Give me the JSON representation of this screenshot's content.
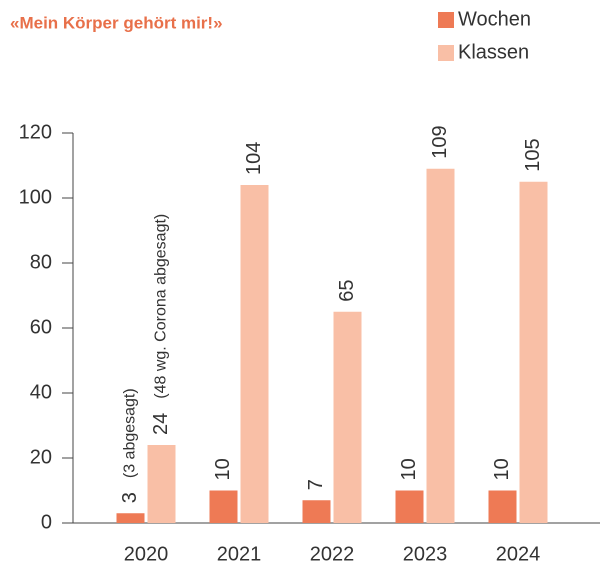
{
  "chart_data": {
    "type": "bar",
    "title": "«Mein Körper gehört mir!»",
    "categories": [
      "2020",
      "2021",
      "2022",
      "2023",
      "2024"
    ],
    "series": [
      {
        "name": "Wochen",
        "color": "#ee7a55",
        "values": [
          3,
          10,
          7,
          10,
          10
        ]
      },
      {
        "name": "Klassen",
        "color": "#f9bfa6",
        "values": [
          24,
          104,
          65,
          109,
          105
        ]
      }
    ],
    "annotations": [
      "(3 abgesagt)",
      "(48 wg. Corona abgesagt)"
    ],
    "ylim": [
      0,
      120
    ],
    "yticks": [
      0,
      20,
      40,
      60,
      80,
      100,
      120
    ]
  }
}
